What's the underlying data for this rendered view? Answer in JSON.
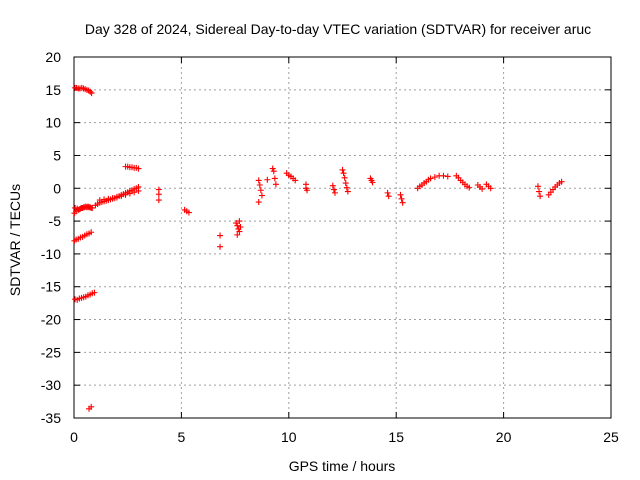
{
  "chart_data": {
    "type": "scatter",
    "title": "Day 328 of 2024, Sidereal Day-to-day VTEC variation (SDTVAR) for receiver aruc",
    "xlabel": "GPS time / hours",
    "ylabel": "SDTVAR / TECUs",
    "xlim": [
      0,
      25
    ],
    "ylim": [
      -35,
      20
    ],
    "xticks": [
      0,
      5,
      10,
      15,
      20,
      25
    ],
    "yticks": [
      -35,
      -30,
      -25,
      -20,
      -15,
      -10,
      -5,
      0,
      5,
      10,
      15,
      20
    ],
    "grid": true,
    "marker": "+",
    "marker_color": "#ff0000",
    "series": [
      {
        "name": "SDTVAR",
        "x": [
          0.05,
          0.12,
          0.2,
          0.28,
          0.36,
          0.44,
          0.52,
          0.6,
          0.68,
          0.76,
          0.82,
          0.02,
          0.1,
          0.2,
          0.3,
          0.4,
          0.5,
          0.6,
          0.7,
          0.8,
          0.02,
          0.1,
          0.2,
          0.3,
          0.4,
          0.5,
          0.6,
          0.7,
          0.8,
          0.05,
          0.15,
          0.25,
          0.35,
          0.45,
          0.55,
          0.65,
          0.75,
          0.85,
          0.95,
          0.05,
          0.15,
          0.25,
          0.35,
          0.45,
          0.55,
          0.65,
          0.75,
          0.85,
          0.7,
          0.8,
          1.0,
          1.1,
          1.2,
          1.3,
          1.4,
          1.5,
          1.6,
          1.7,
          1.8,
          1.9,
          2.0,
          2.1,
          2.2,
          2.3,
          2.4,
          2.5,
          2.6,
          2.7,
          2.8,
          2.9,
          3.0,
          1.2,
          1.4,
          1.6,
          1.8,
          2.0,
          2.2,
          2.4,
          2.6,
          2.8,
          3.0,
          2.4,
          2.5,
          2.6,
          2.7,
          2.8,
          2.9,
          3.0,
          3.95,
          3.95,
          3.95,
          5.15,
          5.25,
          5.35,
          6.8,
          6.8,
          7.55,
          7.6,
          7.65,
          7.7,
          7.75,
          7.6,
          7.7,
          8.6,
          8.65,
          8.7,
          8.75,
          8.6,
          9.0,
          9.25,
          9.3,
          9.35,
          9.4,
          9.9,
          10.0,
          10.1,
          10.2,
          10.3,
          10.8,
          10.8,
          10.85,
          12.05,
          12.1,
          12.15,
          12.5,
          12.55,
          12.6,
          12.65,
          12.7,
          12.75,
          13.8,
          13.85,
          13.9,
          14.6,
          14.65,
          15.2,
          15.25,
          15.3,
          16.0,
          16.1,
          16.2,
          16.3,
          16.4,
          16.5,
          16.6,
          16.8,
          17.0,
          17.2,
          17.4,
          17.8,
          17.9,
          18.0,
          18.1,
          18.2,
          18.3,
          18.4,
          18.8,
          18.9,
          19.0,
          19.2,
          19.3,
          19.4,
          21.6,
          21.65,
          21.7,
          22.1,
          22.2,
          22.3,
          22.4,
          22.5,
          22.6,
          22.7
        ],
        "y": [
          15.3,
          15.3,
          15.2,
          15.2,
          15.3,
          15.2,
          15.1,
          15.0,
          14.9,
          14.7,
          14.5,
          -3.8,
          -3.5,
          -3.3,
          -3.1,
          -3.0,
          -2.9,
          -2.9,
          -2.9,
          -3.0,
          -8.0,
          -7.8,
          -7.7,
          -7.5,
          -7.4,
          -7.2,
          -7.0,
          -6.9,
          -6.7,
          -16.9,
          -17.0,
          -16.8,
          -16.7,
          -16.6,
          -16.5,
          -16.3,
          -16.2,
          -16.0,
          -15.9,
          -3.0,
          -3.1,
          -3.2,
          -3.0,
          -2.9,
          -2.8,
          -2.8,
          -2.9,
          -3.0,
          -33.6,
          -33.3,
          -2.6,
          -2.4,
          -2.2,
          -2.1,
          -2.0,
          -1.9,
          -1.8,
          -1.7,
          -1.6,
          -1.5,
          -1.3,
          -1.2,
          -1.0,
          -0.9,
          -0.7,
          -0.6,
          -0.4,
          -0.3,
          -0.1,
          0.0,
          0.2,
          -1.8,
          -1.7,
          -1.6,
          -1.5,
          -1.4,
          -1.2,
          -1.0,
          -0.8,
          -0.6,
          -0.4,
          3.3,
          3.3,
          3.2,
          3.2,
          3.1,
          3.1,
          3.0,
          -0.2,
          -0.9,
          -1.8,
          -3.3,
          -3.5,
          -3.7,
          -7.2,
          -8.9,
          -5.3,
          -5.7,
          -6.2,
          -6.6,
          -5.9,
          -7.1,
          -5.0,
          1.2,
          0.5,
          -0.3,
          -1.1,
          -2.1,
          1.3,
          3.0,
          2.6,
          1.5,
          0.6,
          2.3,
          2.0,
          1.8,
          1.5,
          1.2,
          0.6,
          0.0,
          -0.3,
          0.4,
          -0.2,
          -0.7,
          2.8,
          2.3,
          1.6,
          0.8,
          0.1,
          -0.5,
          1.5,
          1.2,
          0.9,
          -0.7,
          -1.2,
          -1.0,
          -1.6,
          -2.2,
          0.0,
          0.3,
          0.5,
          0.8,
          1.0,
          1.3,
          1.5,
          1.7,
          1.9,
          1.9,
          1.8,
          1.9,
          1.6,
          1.2,
          0.9,
          0.6,
          0.3,
          0.1,
          0.5,
          0.2,
          -0.1,
          0.6,
          0.3,
          0.0,
          0.3,
          -0.5,
          -1.2,
          -1.0,
          -0.6,
          -0.2,
          0.2,
          0.5,
          0.8,
          1.0
        ]
      }
    ]
  }
}
